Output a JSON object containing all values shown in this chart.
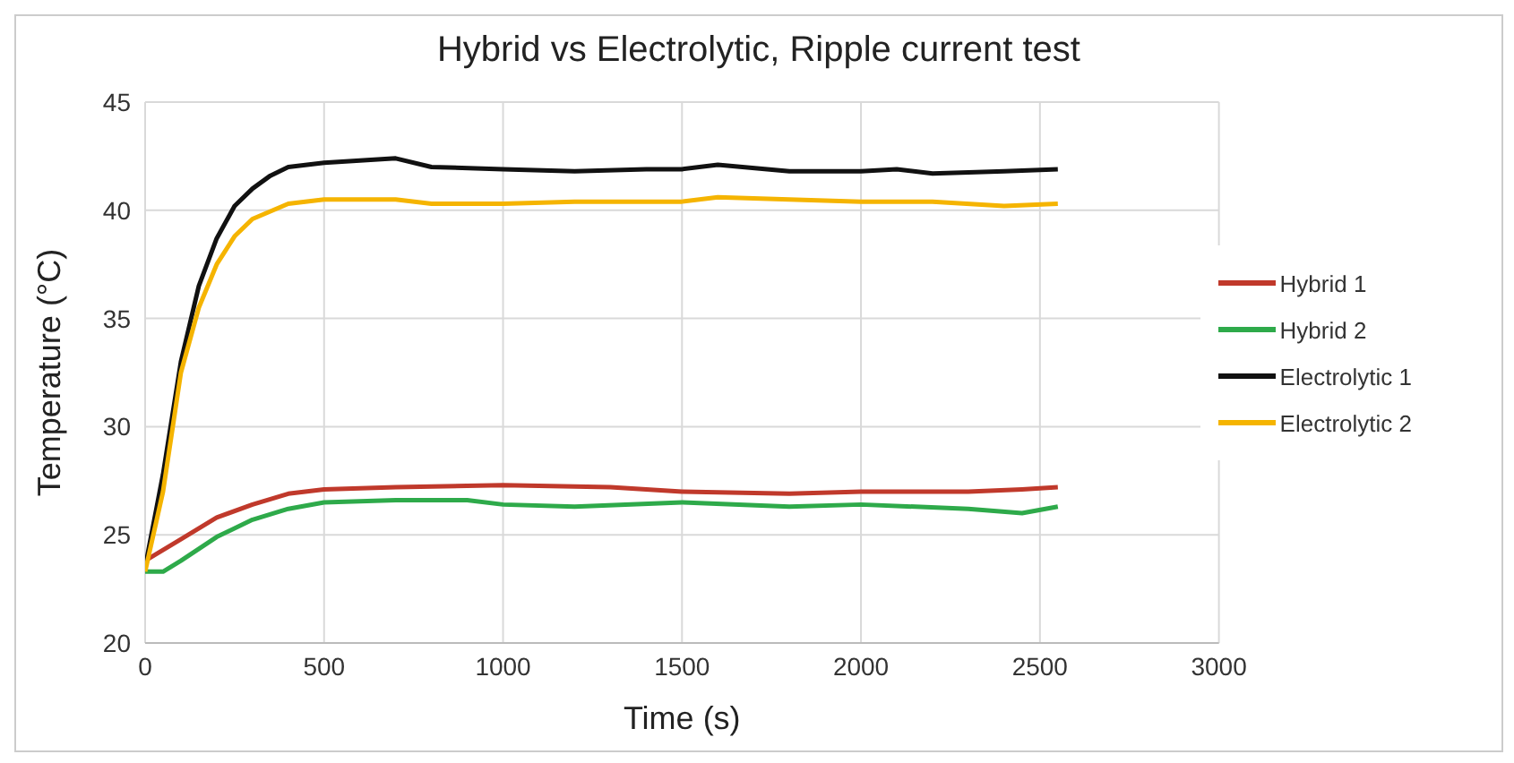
{
  "chart_data": {
    "type": "line",
    "title": "Hybrid vs Electrolytic, Ripple current test",
    "xlabel": "Time (s)",
    "ylabel": "Temperature (°C)",
    "xlim": [
      0,
      3000
    ],
    "xticks": [
      0,
      500,
      1000,
      1500,
      2000,
      2500,
      3000
    ],
    "ylim": [
      20,
      45
    ],
    "yticks": [
      20,
      25,
      30,
      35,
      40,
      45
    ],
    "grid": true,
    "legend": "right",
    "marker": "none",
    "line_style": "solid",
    "series": [
      {
        "name": "Hybrid 1",
        "color": "#c0392b",
        "x": [
          0,
          100,
          200,
          300,
          400,
          500,
          700,
          1000,
          1300,
          1500,
          1800,
          2000,
          2300,
          2450,
          2550
        ],
        "values": [
          23.8,
          24.8,
          25.8,
          26.4,
          26.9,
          27.1,
          27.2,
          27.3,
          27.2,
          27.0,
          26.9,
          27.0,
          27.0,
          27.1,
          27.2
        ]
      },
      {
        "name": "Hybrid 2",
        "color": "#2eaa4a",
        "x": [
          0,
          50,
          100,
          200,
          300,
          400,
          500,
          700,
          900,
          1000,
          1200,
          1500,
          1800,
          2000,
          2300,
          2450,
          2550
        ],
        "values": [
          23.3,
          23.3,
          23.8,
          24.9,
          25.7,
          26.2,
          26.5,
          26.6,
          26.6,
          26.4,
          26.3,
          26.5,
          26.3,
          26.4,
          26.2,
          26.0,
          26.3
        ]
      },
      {
        "name": "Electrolytic 1",
        "color": "#111111",
        "x": [
          0,
          50,
          100,
          150,
          200,
          250,
          300,
          350,
          400,
          500,
          600,
          700,
          800,
          1000,
          1200,
          1400,
          1500,
          1600,
          1800,
          2000,
          2100,
          2200,
          2400,
          2550
        ],
        "values": [
          23.5,
          27.8,
          33,
          36.5,
          38.7,
          40.2,
          41,
          41.6,
          42,
          42.2,
          42.3,
          42.4,
          42,
          41.9,
          41.8,
          41.9,
          41.9,
          42.1,
          41.8,
          41.8,
          41.9,
          41.7,
          41.8,
          41.9
        ]
      },
      {
        "name": "Electrolytic 2",
        "color": "#f5b400",
        "x": [
          0,
          50,
          100,
          150,
          200,
          250,
          300,
          400,
          500,
          700,
          800,
          1000,
          1200,
          1500,
          1600,
          1800,
          2000,
          2200,
          2400,
          2550
        ],
        "values": [
          23.3,
          27,
          32.5,
          35.5,
          37.5,
          38.8,
          39.6,
          40.3,
          40.5,
          40.5,
          40.3,
          40.3,
          40.4,
          40.4,
          40.6,
          40.5,
          40.4,
          40.4,
          40.2,
          40.3
        ]
      }
    ]
  }
}
